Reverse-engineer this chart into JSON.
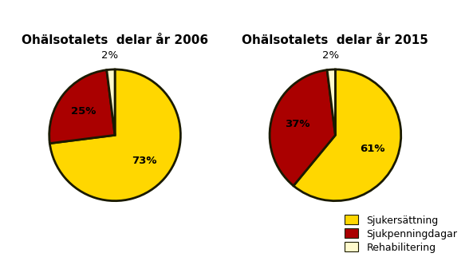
{
  "title_2006": "Ohälsotalets  delar år 2006",
  "title_2015": "Ohälsotalets  delar år 2015",
  "chart_2006": {
    "values": [
      73,
      25,
      2
    ],
    "labels": [
      "73%",
      "25%",
      "2%"
    ],
    "colors": [
      "#FFD700",
      "#AA0000",
      "#FFFACD"
    ]
  },
  "chart_2015": {
    "values": [
      61,
      37,
      2
    ],
    "labels": [
      "61%",
      "37%",
      "2%"
    ],
    "colors": [
      "#FFD700",
      "#AA0000",
      "#FFFACD"
    ]
  },
  "legend_labels": [
    "Sjukersättning",
    "Sjukpenningdagar",
    "Rehabilitering"
  ],
  "legend_colors": [
    "#FFD700",
    "#AA0000",
    "#FFFACD"
  ],
  "background_color": "#FFFFFF",
  "wedge_edge_color": "#1a1a00",
  "title_fontsize": 11,
  "label_fontsize": 9.5
}
